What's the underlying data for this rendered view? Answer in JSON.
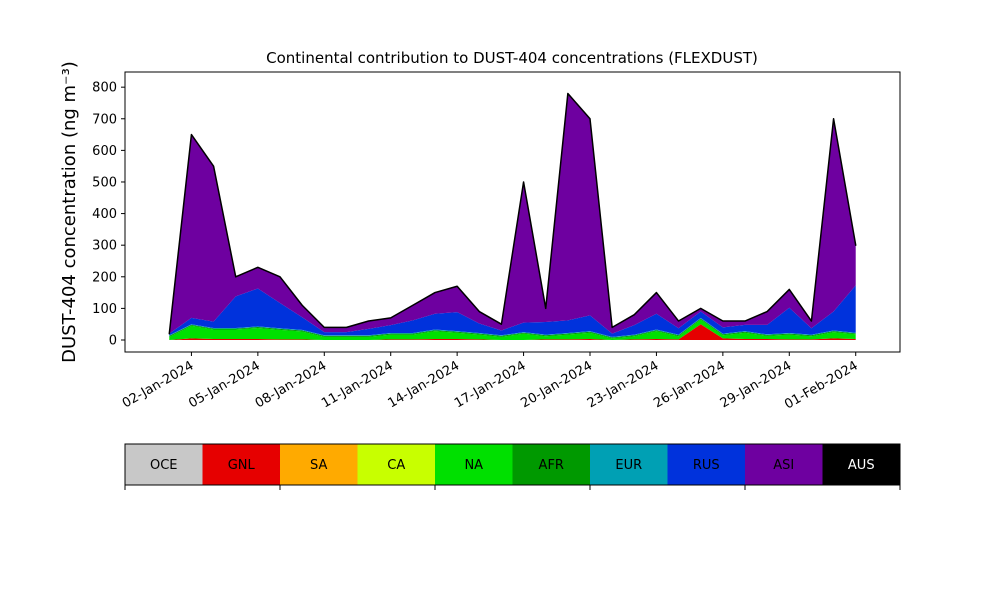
{
  "chart_data": {
    "type": "stacked-area",
    "title": "Continental contribution to DUST-404 concentrations (FLEXDUST)",
    "y_label": "DUST-404 concentration (ng m⁻³)",
    "x": [
      "01-Jan-2024",
      "02-Jan-2024",
      "03-Jan-2024",
      "04-Jan-2024",
      "05-Jan-2024",
      "06-Jan-2024",
      "07-Jan-2024",
      "08-Jan-2024",
      "09-Jan-2024",
      "10-Jan-2024",
      "11-Jan-2024",
      "12-Jan-2024",
      "13-Jan-2024",
      "14-Jan-2024",
      "15-Jan-2024",
      "16-Jan-2024",
      "17-Jan-2024",
      "18-Jan-2024",
      "19-Jan-2024",
      "20-Jan-2024",
      "21-Jan-2024",
      "22-Jan-2024",
      "23-Jan-2024",
      "24-Jan-2024",
      "25-Jan-2024",
      "26-Jan-2024",
      "27-Jan-2024",
      "28-Jan-2024",
      "29-Jan-2024",
      "30-Jan-2024",
      "31-Jan-2024",
      "01-Feb-2024"
    ],
    "series": [
      {
        "name": "OCE",
        "color": "#c8c8c8",
        "values": [
          0,
          0,
          0,
          0,
          0,
          0,
          0,
          0,
          0,
          0,
          0,
          0,
          0,
          0,
          0,
          0,
          0,
          0,
          0,
          0,
          0,
          0,
          0,
          0,
          0,
          0,
          0,
          0,
          0,
          0,
          0,
          0
        ]
      },
      {
        "name": "GNL",
        "color": "#e60000",
        "values": [
          0,
          5,
          3,
          3,
          3,
          2,
          2,
          0,
          0,
          0,
          2,
          2,
          3,
          3,
          2,
          0,
          0,
          2,
          2,
          3,
          0,
          2,
          3,
          2,
          50,
          5,
          3,
          3,
          2,
          2,
          5,
          3
        ]
      },
      {
        "name": "SA",
        "color": "#ffaa00",
        "values": [
          0,
          0,
          0,
          0,
          0,
          0,
          0,
          0,
          0,
          0,
          0,
          0,
          0,
          0,
          0,
          0,
          0,
          0,
          0,
          0,
          0,
          0,
          0,
          0,
          0,
          0,
          0,
          0,
          0,
          0,
          0,
          0
        ]
      },
      {
        "name": "CA",
        "color": "#c8ff00",
        "values": [
          0,
          0,
          0,
          0,
          0,
          0,
          0,
          0,
          0,
          0,
          0,
          0,
          0,
          0,
          0,
          0,
          0,
          0,
          0,
          0,
          0,
          0,
          0,
          0,
          0,
          0,
          0,
          0,
          0,
          0,
          0,
          0
        ]
      },
      {
        "name": "NA",
        "color": "#00e000",
        "values": [
          10,
          40,
          30,
          30,
          35,
          30,
          25,
          10,
          10,
          10,
          15,
          15,
          25,
          20,
          15,
          10,
          20,
          10,
          15,
          20,
          5,
          10,
          25,
          10,
          15,
          10,
          20,
          10,
          15,
          10,
          20,
          15
        ]
      },
      {
        "name": "AFR",
        "color": "#009900",
        "values": [
          3,
          3,
          3,
          3,
          3,
          3,
          3,
          3,
          3,
          3,
          3,
          3,
          3,
          3,
          3,
          3,
          3,
          3,
          3,
          3,
          3,
          3,
          3,
          3,
          3,
          3,
          3,
          3,
          3,
          3,
          3,
          3
        ]
      },
      {
        "name": "EUR",
        "color": "#00a0b4",
        "values": [
          2,
          2,
          2,
          2,
          2,
          2,
          2,
          2,
          2,
          2,
          2,
          2,
          2,
          2,
          2,
          2,
          2,
          2,
          2,
          2,
          2,
          2,
          2,
          2,
          2,
          2,
          2,
          2,
          2,
          2,
          2,
          2
        ]
      },
      {
        "name": "RUS",
        "color": "#0032dc",
        "values": [
          5,
          20,
          20,
          100,
          120,
          80,
          40,
          10,
          10,
          20,
          25,
          40,
          50,
          60,
          30,
          15,
          30,
          40,
          40,
          50,
          10,
          30,
          50,
          20,
          20,
          20,
          20,
          30,
          80,
          20,
          60,
          150
        ]
      },
      {
        "name": "ASI",
        "color": "#6e00a0",
        "values": [
          0,
          580,
          492,
          62,
          67,
          83,
          38,
          15,
          15,
          25,
          23,
          48,
          67,
          82,
          38,
          20,
          445,
          43,
          718,
          622,
          20,
          33,
          67,
          23,
          10,
          20,
          12,
          42,
          58,
          23,
          610,
          127
        ]
      },
      {
        "name": "AUS",
        "color": "#000000",
        "values": [
          0,
          0,
          0,
          0,
          0,
          0,
          0,
          0,
          0,
          0,
          0,
          0,
          0,
          0,
          0,
          0,
          0,
          0,
          0,
          0,
          0,
          0,
          0,
          0,
          0,
          0,
          0,
          0,
          0,
          0,
          0,
          0
        ]
      }
    ],
    "xlim": [
      "30-Dec-2023",
      "03-Feb-2024"
    ],
    "xticks": [
      "02-Jan-2024",
      "05-Jan-2024",
      "08-Jan-2024",
      "11-Jan-2024",
      "14-Jan-2024",
      "17-Jan-2024",
      "20-Jan-2024",
      "23-Jan-2024",
      "26-Jan-2024",
      "29-Jan-2024",
      "01-Feb-2024"
    ],
    "ylim": [
      -38,
      848
    ],
    "yticks": [
      0,
      100,
      200,
      300,
      400,
      500,
      600,
      700,
      800
    ],
    "legend": "colorbar-below"
  }
}
